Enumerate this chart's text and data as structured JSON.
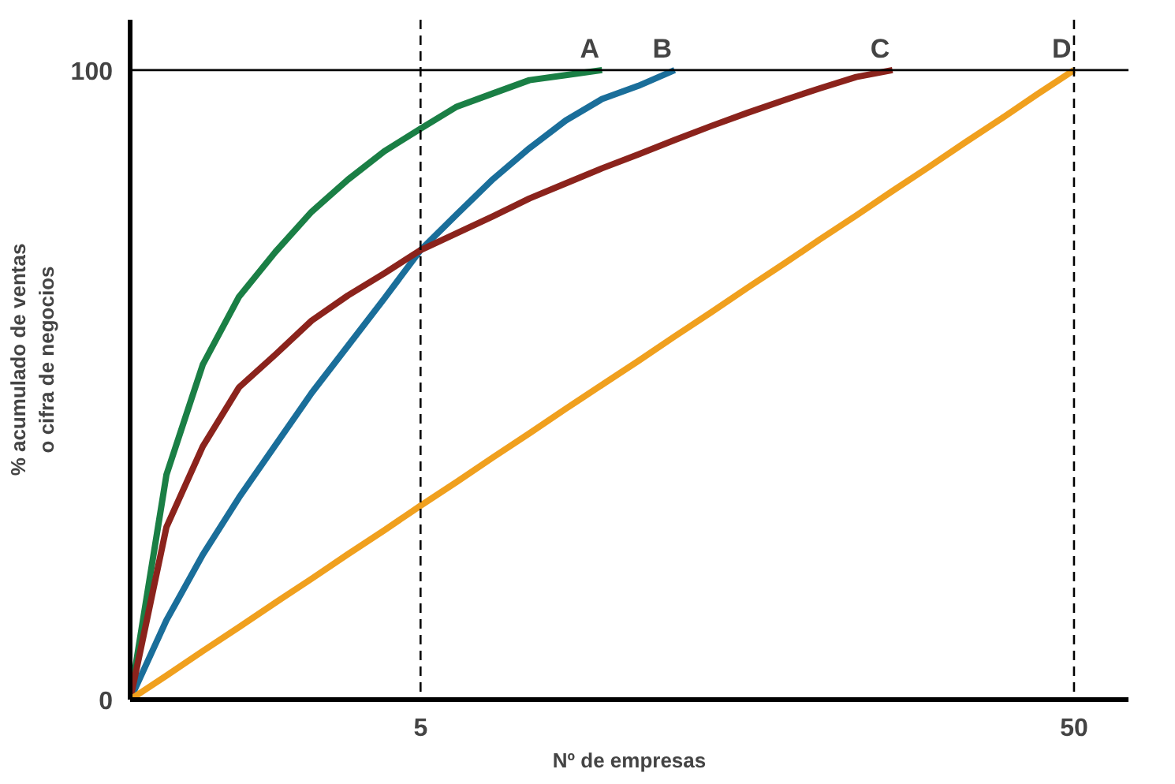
{
  "chart_data": {
    "type": "line",
    "xlabel": "Nº de empresas",
    "ylabel": "% acumulado de ventas\no cifra de negocios",
    "categories": [
      null,
      null,
      null,
      null,
      null,
      null,
      null,
      null,
      "5",
      null,
      null,
      null,
      null,
      null,
      null,
      null,
      null,
      null,
      null,
      null,
      null,
      null,
      null,
      null,
      null,
      null,
      "50"
    ],
    "ylim": [
      0,
      108
    ],
    "yticks": [
      0,
      100
    ],
    "grid": false,
    "marker": "none",
    "line_style": "solid",
    "series": [
      {
        "name": "A",
        "color": "#1a7f45",
        "values": [
          0,
          35.7,
          53.2,
          64.0,
          71.1,
          77.5,
          82.6,
          87.1,
          90.7,
          94.2,
          96.3,
          98.4,
          99.2,
          100,
          null,
          null,
          null,
          null,
          null,
          null,
          null,
          null,
          null,
          null,
          null,
          null,
          null
        ]
      },
      {
        "name": "B",
        "color": "#1a6e9a",
        "values": [
          0,
          12.6,
          23.0,
          32.1,
          40.4,
          48.7,
          56.2,
          63.7,
          71.4,
          77.1,
          82.7,
          87.6,
          92.0,
          95.4,
          97.5,
          100,
          null,
          null,
          null,
          null,
          null,
          null,
          null,
          null,
          null,
          null,
          null
        ]
      },
      {
        "name": "C",
        "color": "#8b231c",
        "values": [
          0,
          27.4,
          40.2,
          49.6,
          54.8,
          60.2,
          64.2,
          67.7,
          71.4,
          74.1,
          76.8,
          79.6,
          82.0,
          84.4,
          86.6,
          88.9,
          91.1,
          93.2,
          95.2,
          97.1,
          98.9,
          100,
          null,
          null,
          null,
          null,
          null
        ]
      },
      {
        "name": "D",
        "color": "#f0a01e",
        "values": [
          0,
          3.8,
          7.7,
          11.5,
          15.4,
          19.2,
          23.1,
          26.9,
          30.8,
          34.6,
          38.5,
          42.3,
          46.2,
          50,
          53.8,
          57.7,
          61.5,
          65.4,
          69.2,
          73.1,
          76.9,
          80.8,
          84.6,
          88.5,
          92.3,
          96.2,
          100
        ]
      }
    ],
    "ref_lines": [
      {
        "axis": "x",
        "value": "5",
        "line_style": "dashed",
        "color": "#000000"
      },
      {
        "axis": "x",
        "value": "50",
        "line_style": "dashed",
        "color": "#000000"
      },
      {
        "axis": "y",
        "value": 100,
        "line_style": "solid",
        "color": "#000000"
      }
    ]
  }
}
